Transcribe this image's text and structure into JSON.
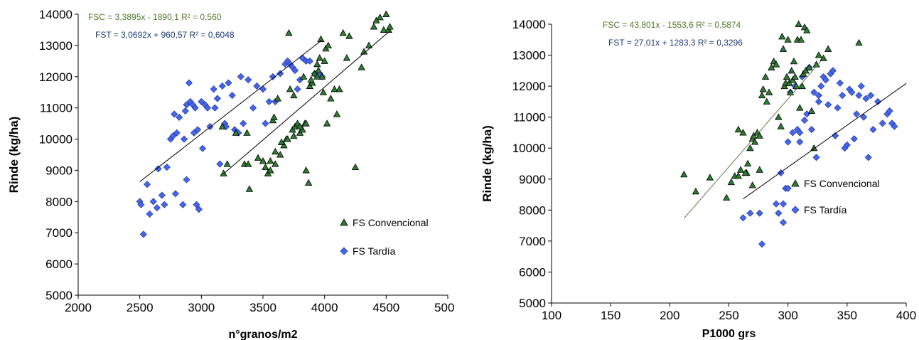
{
  "chart_data": [
    {
      "type": "scatter",
      "title": "",
      "xlabel": "n°granos/m2",
      "ylabel": "Rinde (kg/ha)",
      "xlim": [
        2000,
        5000
      ],
      "ylim": [
        5000,
        14000
      ],
      "xticks": [
        "2000",
        "2500",
        "3000",
        "3500",
        "4000",
        "4500",
        "5000"
      ],
      "yticks": [
        "5000",
        "6000",
        "7000",
        "8000",
        "9000",
        "10000",
        "11000",
        "12000",
        "13000",
        "14000"
      ],
      "grid": false,
      "legend_position": "right",
      "colors": {
        "convencional": "#2e7d32",
        "tardia": "#4466ee",
        "line": "#000000",
        "eq_convencional": "#4e7a2c",
        "eq_tardia": "#1f3a78"
      },
      "equations": {
        "convencional": "FSC = 3,3895x - 1890,1 R² = 0,560",
        "tardia": "FST = 3,0692x + 960,57 R² = 0,6048"
      },
      "trendlines": [
        {
          "series": "FS Convencional",
          "x": [
            3180,
            4530
          ]
        },
        {
          "series": "FS Tardía",
          "x": [
            2500,
            3980
          ]
        }
      ],
      "series": [
        {
          "name": "FS Convencional",
          "marker": "triangle",
          "x": [
            3180,
            3170,
            3280,
            3210,
            3350,
            3390,
            3370,
            3380,
            3460,
            3500,
            3520,
            3540,
            3560,
            3580,
            3590,
            3600,
            3620,
            3640,
            3670,
            3690,
            3710,
            3720,
            3740,
            3750,
            3760,
            3780,
            3800,
            3820,
            3830,
            3840,
            3850,
            3870,
            3880,
            3900,
            3920,
            3940,
            3950,
            3960,
            3970,
            3980,
            3990,
            4010,
            4020,
            4030,
            4050,
            4080,
            4100,
            4120,
            4150,
            4180,
            4200,
            4250,
            4300,
            4320,
            4360,
            4400,
            4420,
            4450,
            4480,
            4500,
            4520,
            4530,
            3560,
            3600,
            3650,
            3700,
            3750,
            3800,
            3850,
            3890,
            3940,
            4000
          ],
          "values": [
            8900,
            10400,
            10200,
            9200,
            9200,
            8400,
            10200,
            9200,
            9400,
            9300,
            9100,
            8900,
            9000,
            10600,
            10700,
            9200,
            11300,
            9500,
            9800,
            10000,
            13400,
            11600,
            10300,
            10100,
            10400,
            10500,
            10200,
            10300,
            12000,
            10500,
            9000,
            8600,
            11700,
            11800,
            12100,
            12400,
            12200,
            12600,
            13200,
            12000,
            11500,
            12900,
            10500,
            13000,
            11300,
            11600,
            10800,
            11600,
            13400,
            12600,
            13300,
            9100,
            12300,
            12800,
            13000,
            13600,
            13800,
            13900,
            13500,
            14000,
            13500,
            13600,
            9300,
            9600,
            9900,
            10000,
            11400,
            10400,
            10500,
            11900,
            12000,
            12500
          ]
        },
        {
          "name": "FS Tardía",
          "marker": "diamond",
          "x": [
            2500,
            2510,
            2530,
            2560,
            2580,
            2610,
            2640,
            2650,
            2680,
            2700,
            2720,
            2750,
            2770,
            2780,
            2790,
            2800,
            2820,
            2850,
            2860,
            2870,
            2880,
            2900,
            2910,
            2930,
            2950,
            2960,
            2980,
            3000,
            3010,
            3030,
            3050,
            3070,
            3100,
            3110,
            3130,
            3150,
            3170,
            3190,
            3200,
            3220,
            3250,
            3270,
            3300,
            3320,
            3340,
            3380,
            3420,
            3450,
            3500,
            3520,
            3550,
            3580,
            3600,
            3640,
            3680,
            3700,
            3720,
            3740,
            3760,
            3780,
            3800,
            3820,
            3850,
            3880,
            3920,
            3960,
            3980,
            2880,
            2940,
            2970
          ],
          "values": [
            8000,
            7900,
            6950,
            8550,
            7600,
            8000,
            7800,
            9050,
            8200,
            7900,
            9100,
            10000,
            10100,
            10800,
            8250,
            10200,
            10700,
            7900,
            10000,
            10900,
            11100,
            11800,
            11200,
            11100,
            11000,
            7900,
            7750,
            11200,
            9700,
            11100,
            11000,
            10400,
            11600,
            11000,
            11300,
            9200,
            11700,
            10500,
            10400,
            11800,
            11400,
            10300,
            10200,
            12000,
            10500,
            11900,
            11000,
            11700,
            11600,
            10500,
            11200,
            12000,
            11200,
            12100,
            12400,
            12500,
            12400,
            12300,
            12200,
            11600,
            11900,
            12600,
            12500,
            12500,
            12100,
            12100,
            12000,
            8700,
            10200,
            10300
          ]
        }
      ]
    },
    {
      "type": "scatter",
      "title": "",
      "xlabel": "P1000 grs",
      "ylabel": "Rinde (kg/ha)",
      "xlim": [
        100,
        400
      ],
      "ylim": [
        5000,
        14000
      ],
      "xticks": [
        "100",
        "150",
        "200",
        "250",
        "300",
        "350",
        "400"
      ],
      "yticks": [
        "5000",
        "6000",
        "7000",
        "8000",
        "9000",
        "10000",
        "11000",
        "12000",
        "13000",
        "14000"
      ],
      "grid": false,
      "legend_position": "right",
      "colors": {
        "convencional": "#2e7d32",
        "tardia": "#4466ee",
        "line": "#000000",
        "eq_convencional": "#4e7a2c",
        "eq_tardia": "#1f3a78",
        "trend_convencional": "#667a55"
      },
      "equations": {
        "convencional": "FSC = 43,801x - 1553,6 R² = 0,5874",
        "tardia": "FST = 27,01x + 1283,3 R² = 0,3296"
      },
      "trendlines": [
        {
          "series": "FS Convencional",
          "x": [
            212,
            328
          ]
        },
        {
          "series": "FS Tardía",
          "x": [
            262,
            400
          ]
        }
      ],
      "series": [
        {
          "name": "FS Convencional",
          "marker": "triangle",
          "x": [
            212,
            222,
            234,
            248,
            252,
            255,
            258,
            260,
            262,
            265,
            266,
            268,
            270,
            271,
            272,
            274,
            276,
            278,
            279,
            281,
            282,
            284,
            286,
            288,
            290,
            292,
            294,
            295,
            296,
            297,
            298,
            299,
            300,
            301,
            302,
            303,
            304,
            305,
            306,
            307,
            308,
            309,
            310,
            311,
            312,
            313,
            314,
            315,
            316,
            318,
            320,
            322,
            324,
            326,
            330,
            334,
            360,
            258,
            264,
            270,
            276
          ],
          "values": [
            9150,
            8600,
            9050,
            8400,
            8900,
            9100,
            10600,
            9300,
            10500,
            9200,
            9500,
            10000,
            10300,
            10400,
            10200,
            10500,
            10400,
            11700,
            11900,
            12300,
            11500,
            11800,
            12600,
            12800,
            12700,
            11000,
            10700,
            13600,
            13200,
            12000,
            12100,
            12300,
            13500,
            12100,
            11800,
            12500,
            12200,
            12800,
            12300,
            12000,
            13500,
            14000,
            11300,
            13500,
            12000,
            12400,
            13900,
            12500,
            13800,
            12600,
            11200,
            10000,
            12700,
            13000,
            12900,
            13200,
            13400,
            9100,
            9200,
            8800,
            9300
          ]
        },
        {
          "name": "FS Tardía",
          "marker": "diamond",
          "x": [
            262,
            268,
            276,
            278,
            290,
            292,
            294,
            296,
            298,
            300,
            302,
            304,
            306,
            308,
            310,
            312,
            314,
            316,
            318,
            320,
            322,
            324,
            326,
            328,
            330,
            332,
            334,
            336,
            338,
            340,
            342,
            344,
            346,
            348,
            350,
            352,
            354,
            356,
            358,
            360,
            362,
            364,
            366,
            368,
            370,
            372,
            376,
            380,
            384,
            386,
            388,
            390,
            296,
            300,
            310,
            326
          ],
          "values": [
            7750,
            7900,
            7900,
            6900,
            8200,
            7900,
            9200,
            7600,
            8700,
            10200,
            11800,
            10500,
            12000,
            10600,
            10200,
            12300,
            10900,
            11100,
            12600,
            10600,
            11800,
            9700,
            11700,
            12000,
            12300,
            12200,
            11400,
            12400,
            12500,
            10400,
            11300,
            12100,
            11700,
            10000,
            10100,
            11900,
            11800,
            10300,
            11100,
            11700,
            12000,
            11000,
            11600,
            9700,
            11700,
            10600,
            11500,
            10800,
            11100,
            11200,
            10800,
            10700,
            8200,
            8700,
            10500,
            11500
          ]
        }
      ]
    }
  ]
}
